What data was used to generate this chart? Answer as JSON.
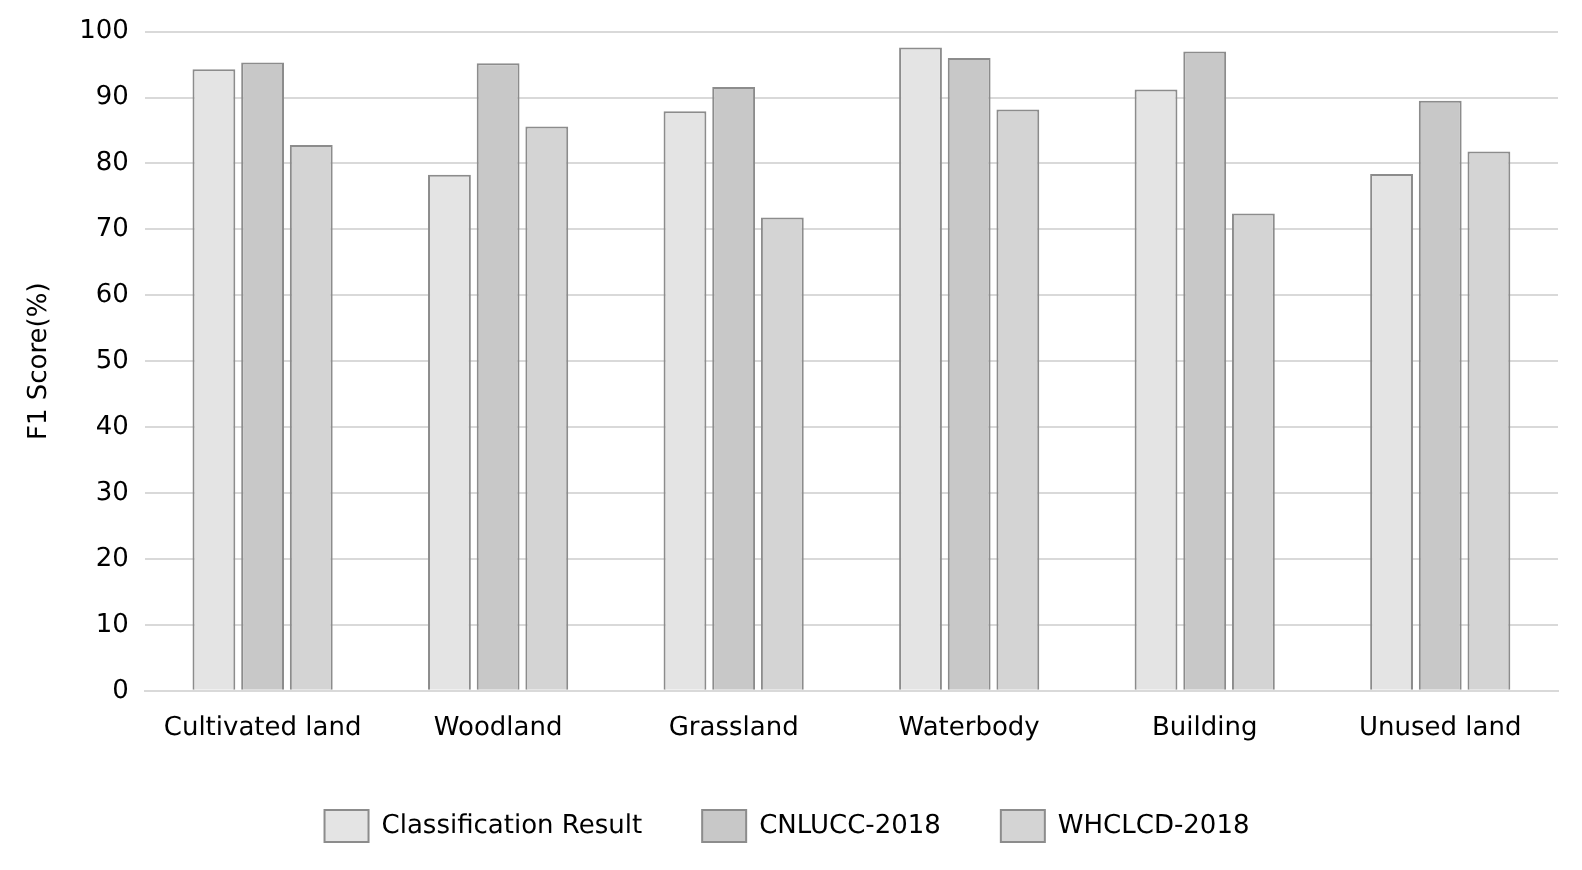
{
  "chart_data": {
    "type": "bar",
    "ylabel": "F1 Score(%)",
    "categories": [
      "Cultivated land",
      "Woodland",
      "Grassland",
      "Waterbody",
      "Building",
      "Unused land"
    ],
    "series": [
      {
        "name": "Classification Result",
        "color": "#e4e4e4",
        "values": [
          94.3,
          78.3,
          87.9,
          97.6,
          91.2,
          78.4
        ]
      },
      {
        "name": "CNLUCC-2018",
        "color": "#c8c8c8",
        "values": [
          95.3,
          95.2,
          91.6,
          96.0,
          97.0,
          89.5
        ]
      },
      {
        "name": "WHCLCD-2018",
        "color": "#d4d4d4",
        "values": [
          82.8,
          85.6,
          71.8,
          88.2,
          72.4,
          81.8
        ]
      }
    ],
    "ylim": [
      0,
      100
    ],
    "yticks": [
      0,
      10,
      20,
      30,
      40,
      50,
      60,
      70,
      80,
      90,
      100
    ],
    "grid": "y",
    "legend": "bottom"
  }
}
